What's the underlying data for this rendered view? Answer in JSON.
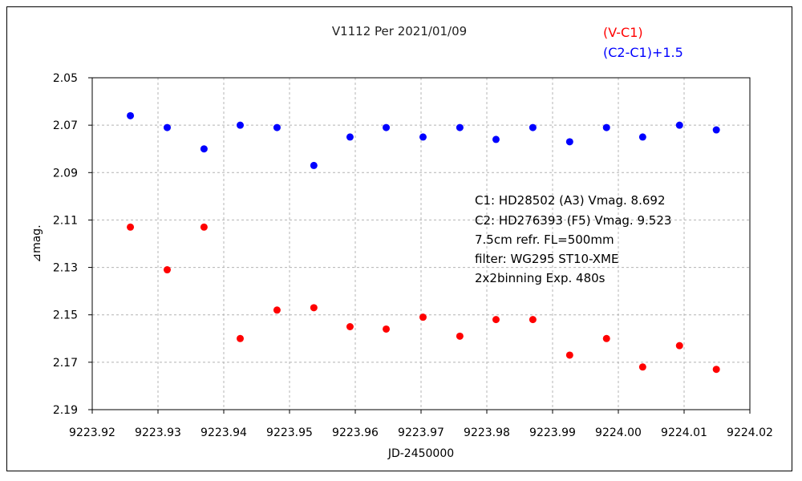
{
  "chart_data": {
    "type": "scatter",
    "title": "V1112 Per   2021/01/09",
    "xlabel": "JD-2450000",
    "ylabel": "⊿mag.",
    "xlim": [
      9223.92,
      9224.02
    ],
    "ylim": [
      2.05,
      2.19
    ],
    "y_inverted": true,
    "grid": true,
    "legend_position": "top-right",
    "x_ticks": [
      "9223.92",
      "9223.93",
      "9223.94",
      "9223.95",
      "9223.96",
      "9223.97",
      "9223.98",
      "9223.99",
      "9224.00",
      "9224.01",
      "9224.02"
    ],
    "y_ticks": [
      "2.05",
      "2.07",
      "2.09",
      "2.11",
      "2.13",
      "2.15",
      "2.17",
      "2.19"
    ],
    "series": [
      {
        "name": "(V-C1)",
        "color": "#ff0000",
        "x": [
          9223.9258,
          9223.9314,
          9223.937,
          9223.9425,
          9223.9481,
          9223.9537,
          9223.9592,
          9223.9647,
          9223.9703,
          9223.9759,
          9223.9814,
          9223.987,
          9223.9926,
          9223.9982,
          9224.0037,
          9224.0093,
          9224.0149
        ],
        "y": [
          2.113,
          2.131,
          2.113,
          2.16,
          2.148,
          2.147,
          2.155,
          2.156,
          2.151,
          2.159,
          2.152,
          2.152,
          2.167,
          2.16,
          2.172,
          2.163,
          2.173
        ]
      },
      {
        "name": "(C2-C1)+1.5",
        "color": "#0000ff",
        "x": [
          9223.9258,
          9223.9314,
          9223.937,
          9223.9425,
          9223.9481,
          9223.9537,
          9223.9592,
          9223.9647,
          9223.9703,
          9223.9759,
          9223.9814,
          9223.987,
          9223.9926,
          9223.9982,
          9224.0037,
          9224.0093,
          9224.0149
        ],
        "y": [
          2.066,
          2.071,
          2.08,
          2.07,
          2.071,
          2.087,
          2.075,
          2.071,
          2.075,
          2.071,
          2.076,
          2.071,
          2.077,
          2.071,
          2.075,
          2.07,
          2.072
        ]
      }
    ],
    "annotation": [
      "C1: HD28502 (A3) Vmag. 8.692",
      "C2: HD276393 (F5) Vmag. 9.523",
      "7.5cm refr. FL=500mm",
      "filter: WG295  ST10-XME",
      "2x2binning  Exp. 480s"
    ]
  }
}
